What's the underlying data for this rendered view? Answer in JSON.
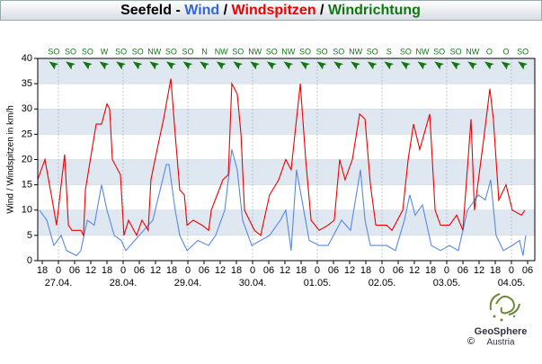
{
  "chart_data": {
    "type": "line",
    "title_parts": [
      {
        "text": "Seefeld - ",
        "color": "#000000"
      },
      {
        "text": "Wind",
        "color": "#3366dd"
      },
      {
        "text": " / ",
        "color": "#000000"
      },
      {
        "text": "Windspitzen",
        "color": "#ee0000"
      },
      {
        "text": " / ",
        "color": "#000000"
      },
      {
        "text": "Windrichtung",
        "color": "#117711"
      }
    ],
    "ylabel": "Wind / Windspitzen in km/h",
    "ylim": [
      0,
      40
    ],
    "yticks": [
      0,
      5,
      10,
      15,
      20,
      25,
      30,
      35,
      40
    ],
    "bands": true,
    "band_color": "#dfe7f1",
    "xlim": [
      16.33,
      200.67
    ],
    "xticks": [
      {
        "value": 18,
        "label": "18"
      },
      {
        "value": 24,
        "label": "0"
      },
      {
        "value": 30,
        "label": "06"
      },
      {
        "value": 36,
        "label": "12"
      },
      {
        "value": 42,
        "label": "18"
      },
      {
        "value": 48,
        "label": "0"
      },
      {
        "value": 54,
        "label": "06"
      },
      {
        "value": 60,
        "label": "12"
      },
      {
        "value": 66,
        "label": "18"
      },
      {
        "value": 72,
        "label": "0"
      },
      {
        "value": 78,
        "label": "06"
      },
      {
        "value": 84,
        "label": "12"
      },
      {
        "value": 90,
        "label": "18"
      },
      {
        "value": 96,
        "label": "0"
      },
      {
        "value": 102,
        "label": "06"
      },
      {
        "value": 108,
        "label": "12"
      },
      {
        "value": 114,
        "label": "18"
      },
      {
        "value": 120,
        "label": "0"
      },
      {
        "value": 126,
        "label": "06"
      },
      {
        "value": 132,
        "label": "12"
      },
      {
        "value": 138,
        "label": "18"
      },
      {
        "value": 144,
        "label": "0"
      },
      {
        "value": 150,
        "label": "06"
      },
      {
        "value": 156,
        "label": "12"
      },
      {
        "value": 162,
        "label": "18"
      },
      {
        "value": 168,
        "label": "0"
      },
      {
        "value": 174,
        "label": "06"
      },
      {
        "value": 180,
        "label": "12"
      },
      {
        "value": 186,
        "label": "18"
      },
      {
        "value": 192,
        "label": "0"
      },
      {
        "value": 198,
        "label": "06"
      }
    ],
    "dates": [
      {
        "value": 24,
        "label": "27.04."
      },
      {
        "value": 48,
        "label": "28.04."
      },
      {
        "value": 72,
        "label": "29.04."
      },
      {
        "value": 96,
        "label": "30.04."
      },
      {
        "value": 120,
        "label": "01.05."
      },
      {
        "value": 144,
        "label": "02.05."
      },
      {
        "value": 168,
        "label": "03.05."
      },
      {
        "value": 192,
        "label": "04.05."
      }
    ],
    "wind_direction": {
      "color": "#117711",
      "x": [
        22.3,
        28.5,
        34.8,
        41,
        47.2,
        53.4,
        59.6,
        65.8,
        72,
        78.2,
        84.4,
        90.6,
        96.9,
        103.1,
        109.3,
        115.5,
        121.7,
        127.9,
        134.2,
        140.4,
        146.6,
        152.8,
        159,
        165.2,
        171.4,
        177.6,
        183.8,
        190,
        196.2
      ],
      "labels": [
        "SO",
        "SO",
        "SO",
        "W",
        "SO",
        "SO",
        "NW",
        "SO",
        "SO",
        "N",
        "NW",
        "SO",
        "NW",
        "SO",
        "NW",
        "SO",
        "SO",
        "SO",
        "NW",
        "SO",
        "S",
        "SO",
        "NW",
        "SO",
        "SO",
        "NW",
        "O",
        "O",
        "SO"
      ]
    },
    "series": [
      {
        "name": "Windspitzen",
        "color": "#ee0000",
        "x": [
          16.3,
          19,
          21.7,
          23.3,
          26.3,
          27.7,
          29,
          32.3,
          33.3,
          34,
          38,
          40,
          42,
          43,
          44,
          47,
          48.3,
          50,
          53,
          55,
          57.3,
          58.3,
          61,
          63,
          65.7,
          67.3,
          69,
          70.7,
          71.7,
          74,
          77.3,
          79.7,
          80.7,
          85,
          87,
          88.3,
          90.3,
          91.7,
          93,
          96.7,
          99,
          102.3,
          105.7,
          108.3,
          110.3,
          113.7,
          115.7,
          117.7,
          120.7,
          124,
          126.3,
          128.3,
          130.3,
          133,
          135.7,
          137.7,
          139.7,
          141.7,
          145.7,
          147.7,
          151.7,
          153.7,
          155.7,
          158,
          161.7,
          163.7,
          165.7,
          169,
          171.7,
          174,
          177,
          178.3,
          181.7,
          184,
          185.3,
          187.3,
          190,
          192.3,
          195.7,
          197
        ],
        "values": [
          16,
          20,
          12,
          7,
          21,
          7,
          6,
          6,
          5,
          14,
          27,
          27,
          31,
          30,
          20,
          17,
          5,
          8,
          5,
          8,
          6,
          16,
          23,
          28,
          36,
          25,
          14,
          13,
          7,
          8,
          7,
          6,
          10,
          16,
          17,
          35,
          33,
          25,
          10,
          6,
          5,
          13,
          16,
          20,
          18,
          35,
          20,
          8,
          6,
          7,
          8,
          20,
          16,
          20,
          29,
          28,
          15,
          7,
          7,
          6,
          10,
          20,
          27,
          22,
          29,
          10,
          7,
          7,
          9,
          6,
          28,
          10,
          24,
          34,
          28,
          12,
          15,
          10,
          9,
          10
        ]
      },
      {
        "name": "Wind",
        "color": "#5b88dd",
        "x": [
          17,
          19.7,
          22.3,
          25,
          27,
          30.7,
          32.3,
          34.7,
          37.3,
          40,
          42,
          44.7,
          47.3,
          49,
          52.3,
          59,
          64,
          65,
          67.3,
          69,
          71.7,
          75.7,
          79.7,
          82.3,
          85.7,
          88.3,
          90.3,
          92.3,
          95.7,
          102.3,
          106.3,
          108.3,
          110.3,
          112.3,
          114.3,
          117,
          120.7,
          124,
          129,
          132.3,
          136,
          137.7,
          139.7,
          145.7,
          149,
          152.3,
          154.3,
          156.3,
          159,
          162.3,
          165.7,
          169,
          172.3,
          175.7,
          179.7,
          182.3,
          184.3,
          186.3,
          189,
          192.3,
          195,
          196.3,
          197.3
        ],
        "values": [
          10,
          8,
          3,
          5,
          2,
          1,
          2,
          8,
          7,
          15,
          10,
          5,
          4,
          2,
          4,
          8,
          19,
          19,
          10,
          5,
          2,
          4,
          3,
          5,
          10,
          22,
          18,
          8,
          3,
          5,
          8,
          10,
          2,
          18,
          12,
          4,
          3,
          3,
          8,
          6,
          18,
          8,
          3,
          3,
          2,
          8,
          13,
          9,
          11,
          3,
          2,
          3,
          2,
          10,
          13,
          12,
          16,
          5,
          2,
          3,
          4,
          1,
          5
        ]
      }
    ],
    "logo": {
      "name": "GeoSphere",
      "sub": "Austria"
    },
    "copyright": "©"
  }
}
